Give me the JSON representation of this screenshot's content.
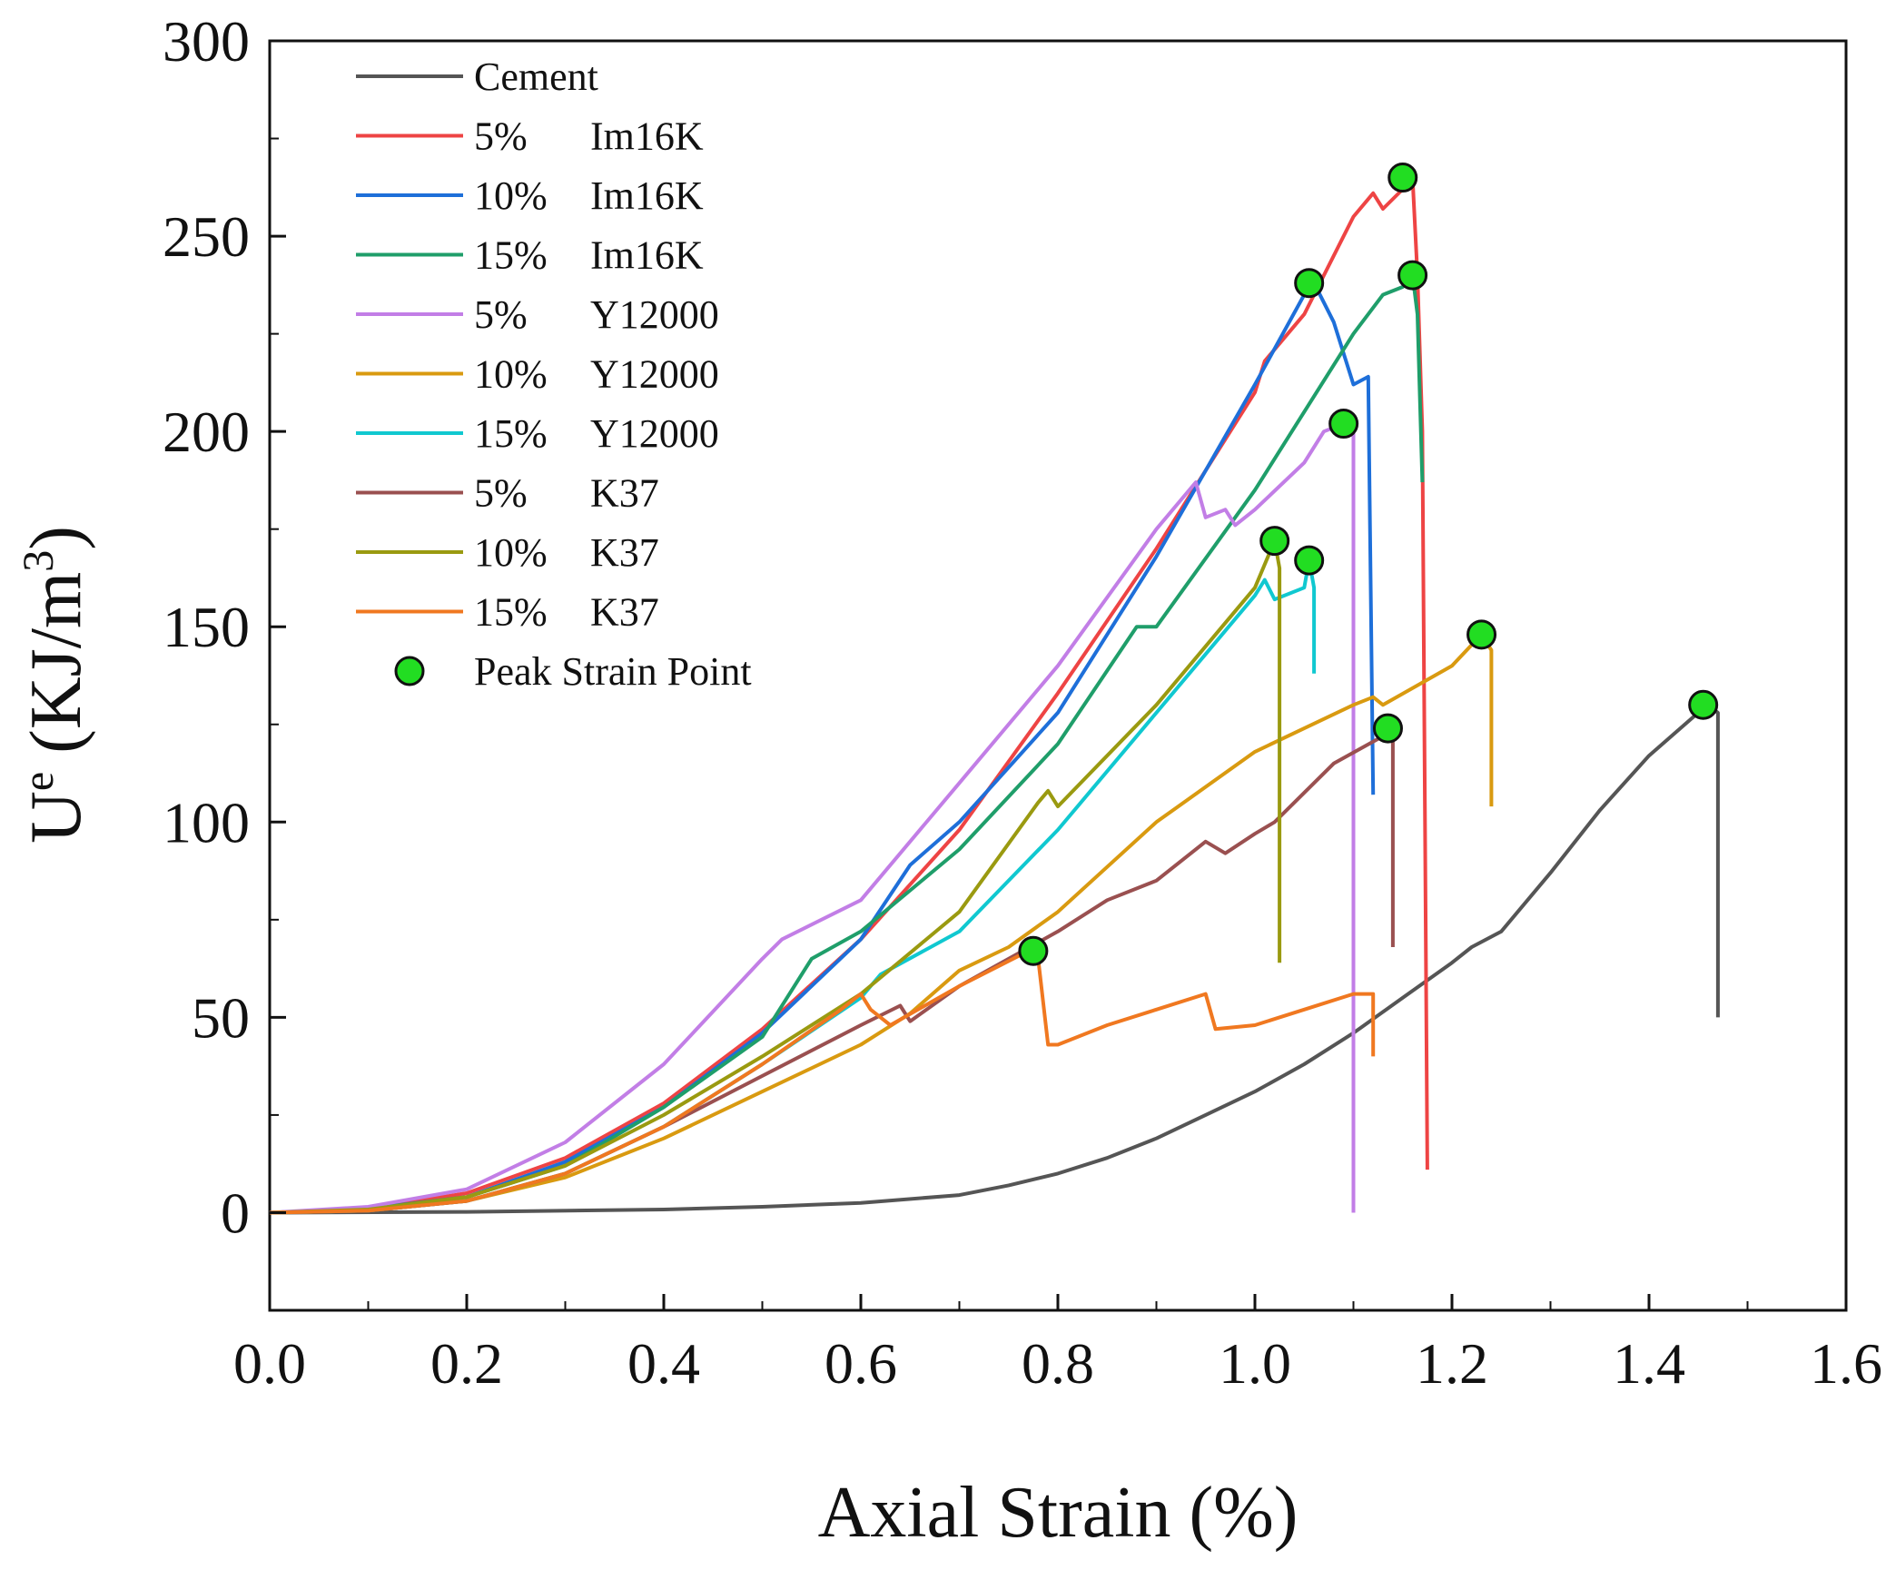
{
  "chart_data": {
    "type": "line",
    "xlabel": "Axial Strain (%)",
    "ylabel_main": "U",
    "ylabel_sup": "e",
    "ylabel_unit_pre": " (KJ/m",
    "ylabel_unit_sup": "3",
    "ylabel_unit_post": ")",
    "xlim": [
      0,
      1.6
    ],
    "ylim": [
      -25,
      300
    ],
    "xticks": [
      "0.0",
      "0.2",
      "0.4",
      "0.6",
      "0.8",
      "1.0",
      "1.2",
      "1.4",
      "1.6"
    ],
    "yticks": [
      "0",
      "50",
      "100",
      "150",
      "200",
      "250",
      "300"
    ],
    "legend_position": "top-left",
    "series": [
      {
        "name": "Cement",
        "pct": "",
        "mat": "Cement",
        "color": "#555555",
        "points": [
          [
            0,
            0
          ],
          [
            0.2,
            0.2
          ],
          [
            0.4,
            0.8
          ],
          [
            0.5,
            1.5
          ],
          [
            0.6,
            2.5
          ],
          [
            0.7,
            4.5
          ],
          [
            0.75,
            7
          ],
          [
            0.8,
            10
          ],
          [
            0.85,
            14
          ],
          [
            0.9,
            19
          ],
          [
            0.95,
            25
          ],
          [
            1.0,
            31
          ],
          [
            1.05,
            38
          ],
          [
            1.1,
            46
          ],
          [
            1.15,
            55
          ],
          [
            1.2,
            64
          ],
          [
            1.22,
            68
          ],
          [
            1.25,
            72
          ],
          [
            1.3,
            87
          ],
          [
            1.35,
            103
          ],
          [
            1.4,
            117
          ],
          [
            1.45,
            128
          ],
          [
            1.46,
            130
          ],
          [
            1.47,
            128
          ],
          [
            1.47,
            50
          ]
        ]
      },
      {
        "name": "5%    Im16K",
        "pct": "5%",
        "mat": "Im16K",
        "color": "#ee4444",
        "points": [
          [
            0,
            0
          ],
          [
            0.1,
            1
          ],
          [
            0.2,
            5
          ],
          [
            0.3,
            14
          ],
          [
            0.4,
            28
          ],
          [
            0.5,
            47
          ],
          [
            0.6,
            70
          ],
          [
            0.7,
            98
          ],
          [
            0.8,
            133
          ],
          [
            0.9,
            170
          ],
          [
            1.0,
            210
          ],
          [
            1.01,
            218
          ],
          [
            1.05,
            230
          ],
          [
            1.1,
            255
          ],
          [
            1.12,
            261
          ],
          [
            1.13,
            257
          ],
          [
            1.15,
            262
          ],
          [
            1.16,
            265
          ],
          [
            1.165,
            240
          ],
          [
            1.17,
            200
          ],
          [
            1.175,
            11
          ]
        ]
      },
      {
        "name": "10%  Im16K",
        "pct": "10%",
        "mat": "Im16K",
        "color": "#1e6fd9",
        "points": [
          [
            0,
            0
          ],
          [
            0.1,
            1
          ],
          [
            0.2,
            4
          ],
          [
            0.3,
            13
          ],
          [
            0.4,
            27
          ],
          [
            0.5,
            46
          ],
          [
            0.6,
            70
          ],
          [
            0.65,
            89
          ],
          [
            0.7,
            100
          ],
          [
            0.8,
            128
          ],
          [
            0.9,
            168
          ],
          [
            1.0,
            212
          ],
          [
            1.05,
            235
          ],
          [
            1.06,
            238
          ],
          [
            1.08,
            228
          ],
          [
            1.1,
            212
          ],
          [
            1.115,
            214
          ],
          [
            1.12,
            107
          ]
        ]
      },
      {
        "name": "15%  Im16K",
        "pct": "15%",
        "mat": "Im16K",
        "color": "#1f9e6a",
        "points": [
          [
            0,
            0
          ],
          [
            0.1,
            1
          ],
          [
            0.2,
            4
          ],
          [
            0.3,
            12
          ],
          [
            0.4,
            27
          ],
          [
            0.5,
            45
          ],
          [
            0.55,
            65
          ],
          [
            0.6,
            72
          ],
          [
            0.7,
            93
          ],
          [
            0.8,
            120
          ],
          [
            0.88,
            150
          ],
          [
            0.9,
            150
          ],
          [
            1.0,
            185
          ],
          [
            1.1,
            225
          ],
          [
            1.13,
            235
          ],
          [
            1.15,
            237
          ],
          [
            1.16,
            240
          ],
          [
            1.165,
            230
          ],
          [
            1.17,
            187
          ]
        ]
      },
      {
        "name": "5%    Y12000",
        "pct": "5%",
        "mat": "Y12000",
        "color": "#c27ee6",
        "points": [
          [
            0,
            0
          ],
          [
            0.1,
            1.5
          ],
          [
            0.2,
            6
          ],
          [
            0.3,
            18
          ],
          [
            0.4,
            38
          ],
          [
            0.5,
            65
          ],
          [
            0.52,
            70
          ],
          [
            0.6,
            80
          ],
          [
            0.7,
            110
          ],
          [
            0.8,
            140
          ],
          [
            0.9,
            175
          ],
          [
            0.94,
            187
          ],
          [
            0.95,
            178
          ],
          [
            0.97,
            180
          ],
          [
            0.98,
            176
          ],
          [
            1.0,
            180
          ],
          [
            1.05,
            192
          ],
          [
            1.07,
            200
          ],
          [
            1.09,
            202
          ],
          [
            1.1,
            200
          ],
          [
            1.1,
            0
          ]
        ]
      },
      {
        "name": "10%  Y12000",
        "pct": "10%",
        "mat": "Y12000",
        "color": "#d99a10",
        "points": [
          [
            0,
            0
          ],
          [
            0.1,
            0.5
          ],
          [
            0.2,
            3
          ],
          [
            0.3,
            9
          ],
          [
            0.4,
            19
          ],
          [
            0.5,
            31
          ],
          [
            0.6,
            43
          ],
          [
            0.65,
            51
          ],
          [
            0.7,
            62
          ],
          [
            0.75,
            68
          ],
          [
            0.8,
            77
          ],
          [
            0.9,
            100
          ],
          [
            1.0,
            118
          ],
          [
            1.05,
            124
          ],
          [
            1.1,
            130
          ],
          [
            1.12,
            132
          ],
          [
            1.13,
            130
          ],
          [
            1.2,
            140
          ],
          [
            1.23,
            148
          ],
          [
            1.24,
            144
          ],
          [
            1.24,
            104
          ]
        ]
      },
      {
        "name": "15%  Y12000",
        "pct": "15%",
        "mat": "Y12000",
        "color": "#10c8d0",
        "points": [
          [
            0,
            0
          ],
          [
            0.1,
            0.5
          ],
          [
            0.2,
            3
          ],
          [
            0.3,
            10
          ],
          [
            0.4,
            22
          ],
          [
            0.5,
            38
          ],
          [
            0.6,
            55
          ],
          [
            0.62,
            61
          ],
          [
            0.7,
            72
          ],
          [
            0.8,
            98
          ],
          [
            0.9,
            128
          ],
          [
            1.0,
            158
          ],
          [
            1.01,
            162
          ],
          [
            1.02,
            157
          ],
          [
            1.05,
            160
          ],
          [
            1.055,
            167
          ],
          [
            1.06,
            160
          ],
          [
            1.06,
            138
          ]
        ]
      },
      {
        "name": "5%    K37",
        "pct": "5%",
        "mat": "K37",
        "color": "#9a5050",
        "points": [
          [
            0,
            0
          ],
          [
            0.1,
            0.5
          ],
          [
            0.2,
            3
          ],
          [
            0.3,
            10
          ],
          [
            0.4,
            22
          ],
          [
            0.5,
            35
          ],
          [
            0.6,
            48
          ],
          [
            0.64,
            53
          ],
          [
            0.65,
            49
          ],
          [
            0.7,
            58
          ],
          [
            0.8,
            72
          ],
          [
            0.85,
            80
          ],
          [
            0.9,
            85
          ],
          [
            0.95,
            95
          ],
          [
            0.97,
            92
          ],
          [
            1.0,
            97
          ],
          [
            1.02,
            100
          ],
          [
            1.08,
            115
          ],
          [
            1.13,
            122
          ],
          [
            1.14,
            124
          ],
          [
            1.14,
            68
          ]
        ]
      },
      {
        "name": "10%  K37",
        "pct": "10%",
        "mat": "K37",
        "color": "#9a9a10",
        "points": [
          [
            0,
            0
          ],
          [
            0.1,
            0.8
          ],
          [
            0.2,
            4
          ],
          [
            0.3,
            12
          ],
          [
            0.4,
            25
          ],
          [
            0.5,
            40
          ],
          [
            0.6,
            56
          ],
          [
            0.7,
            77
          ],
          [
            0.78,
            105
          ],
          [
            0.79,
            108
          ],
          [
            0.8,
            104
          ],
          [
            0.9,
            130
          ],
          [
            1.0,
            160
          ],
          [
            1.02,
            172
          ],
          [
            1.025,
            165
          ],
          [
            1.025,
            64
          ]
        ]
      },
      {
        "name": "15%  K37",
        "pct": "15%",
        "mat": "K37",
        "color": "#f07820",
        "points": [
          [
            0,
            0
          ],
          [
            0.1,
            0.5
          ],
          [
            0.2,
            3
          ],
          [
            0.3,
            10
          ],
          [
            0.4,
            22
          ],
          [
            0.5,
            38
          ],
          [
            0.58,
            52
          ],
          [
            0.6,
            56
          ],
          [
            0.61,
            52
          ],
          [
            0.62,
            50
          ],
          [
            0.63,
            48
          ],
          [
            0.7,
            58
          ],
          [
            0.77,
            67
          ],
          [
            0.78,
            65
          ],
          [
            0.79,
            43
          ],
          [
            0.8,
            43
          ],
          [
            0.85,
            48
          ],
          [
            0.9,
            52
          ],
          [
            0.95,
            56
          ],
          [
            0.96,
            47
          ],
          [
            1.0,
            48
          ],
          [
            1.05,
            52
          ],
          [
            1.1,
            56
          ],
          [
            1.12,
            56
          ],
          [
            1.12,
            40
          ]
        ]
      }
    ],
    "peak_points": {
      "name": "Peak Strain Point",
      "color": "#22dd22",
      "points": [
        [
          1.455,
          130
        ],
        [
          1.15,
          265
        ],
        [
          1.055,
          238
        ],
        [
          1.16,
          240
        ],
        [
          1.09,
          202
        ],
        [
          1.23,
          148
        ],
        [
          1.055,
          167
        ],
        [
          1.135,
          124
        ],
        [
          1.02,
          172
        ],
        [
          0.775,
          67
        ]
      ]
    }
  }
}
